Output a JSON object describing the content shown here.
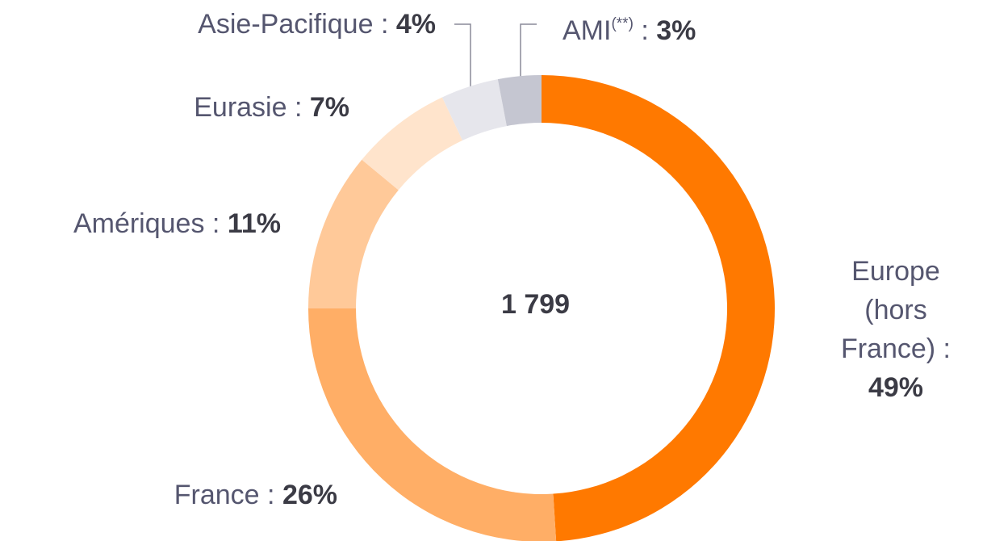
{
  "chart_data": {
    "type": "donut",
    "categories": [
      "Europe (hors France)",
      "France",
      "Amériques",
      "Eurasie",
      "Asie-Pacifique",
      "AMI"
    ],
    "category_notes": [
      null,
      null,
      null,
      null,
      null,
      "(**)"
    ],
    "separator": " : ",
    "values": [
      49,
      26,
      11,
      7,
      4,
      3
    ],
    "value_labels": [
      "49%",
      "26%",
      "11%",
      "7%",
      "4%",
      "3%"
    ],
    "colors": [
      "#ff7900",
      "#ffae66",
      "#ffc999",
      "#ffe4cc",
      "#e6e6ec",
      "#c5c6d1"
    ],
    "center_text": "1 799"
  }
}
